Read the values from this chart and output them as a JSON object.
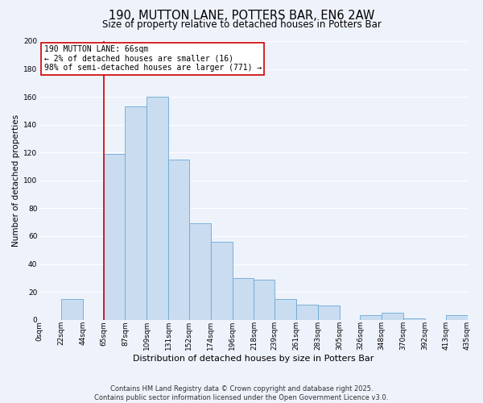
{
  "title": "190, MUTTON LANE, POTTERS BAR, EN6 2AW",
  "subtitle": "Size of property relative to detached houses in Potters Bar",
  "xlabel": "Distribution of detached houses by size in Potters Bar",
  "ylabel": "Number of detached properties",
  "bin_labels": [
    "0sqm",
    "22sqm",
    "44sqm",
    "65sqm",
    "87sqm",
    "109sqm",
    "131sqm",
    "152sqm",
    "174sqm",
    "196sqm",
    "218sqm",
    "239sqm",
    "261sqm",
    "283sqm",
    "305sqm",
    "326sqm",
    "348sqm",
    "370sqm",
    "392sqm",
    "413sqm",
    "435sqm"
  ],
  "bar_heights": [
    0,
    15,
    0,
    119,
    153,
    160,
    115,
    69,
    56,
    30,
    29,
    15,
    11,
    10,
    0,
    3,
    5,
    1,
    0,
    3,
    0
  ],
  "bar_color": "#c9dcf0",
  "bar_edge_color": "#6aaad4",
  "ylim": [
    0,
    200
  ],
  "yticks": [
    0,
    20,
    40,
    60,
    80,
    100,
    120,
    140,
    160,
    180,
    200
  ],
  "vline_x": 65,
  "vline_color": "#cc0000",
  "annotation_title": "190 MUTTON LANE: 66sqm",
  "annotation_line1": "← 2% of detached houses are smaller (16)",
  "annotation_line2": "98% of semi-detached houses are larger (771) →",
  "annotation_box_color": "#ffffff",
  "annotation_box_edge": "#cc0000",
  "bg_color": "#eef2fb",
  "grid_color": "#ffffff",
  "footnote1": "Contains HM Land Registry data © Crown copyright and database right 2025.",
  "footnote2": "Contains public sector information licensed under the Open Government Licence v3.0.",
  "title_fontsize": 10.5,
  "subtitle_fontsize": 8.5,
  "xlabel_fontsize": 8,
  "ylabel_fontsize": 7.5,
  "tick_fontsize": 6.5,
  "annotation_fontsize": 7,
  "footnote_fontsize": 6
}
